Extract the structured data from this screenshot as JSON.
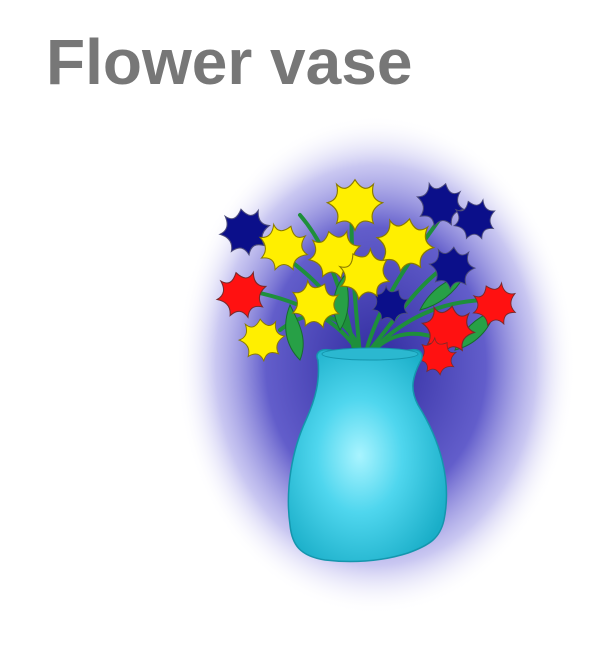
{
  "slide": {
    "title": "Flower vase"
  },
  "illustration": {
    "subject": "vase-with-flowers",
    "colors": {
      "glow": "#5a55c8",
      "vase": "#33c7df",
      "vase_highlight": "#a9f4ff",
      "stems": "#1e8f3b",
      "flower_yellow": "#ffef00",
      "flower_red": "#ff1111",
      "flower_navy": "#0b0f8a",
      "flower_outline": "#4a4a7a"
    }
  }
}
